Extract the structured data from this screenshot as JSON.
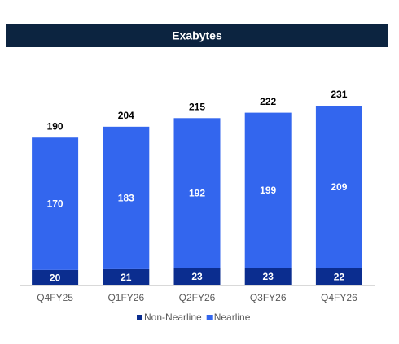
{
  "chart_data": {
    "type": "stacked_bar",
    "title": "Exabytes",
    "categories": [
      "Q4FY25",
      "Q1FY26",
      "Q2FY26",
      "Q3FY26",
      "Q4FY26"
    ],
    "series": [
      {
        "name": "Non-Nearline",
        "color": "#0b2d8f",
        "values": [
          20,
          21,
          23,
          23,
          22
        ]
      },
      {
        "name": "Nearline",
        "color": "#3366ee",
        "values": [
          170,
          183,
          192,
          199,
          209
        ]
      }
    ],
    "totals": [
      190,
      204,
      215,
      222,
      231
    ]
  }
}
